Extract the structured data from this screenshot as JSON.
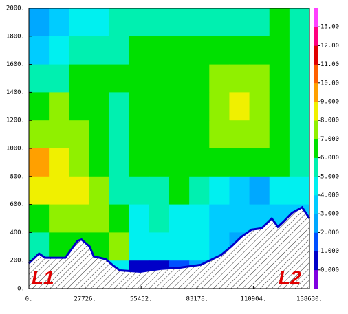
{
  "chart_data": {
    "type": "contour",
    "xlim": [
      0,
      138630
    ],
    "ylim": [
      0,
      2000
    ],
    "xticks": [
      {
        "value": 0,
        "label": "0."
      },
      {
        "value": 27726,
        "label": "27726."
      },
      {
        "value": 55452,
        "label": "55452."
      },
      {
        "value": 83178,
        "label": "83178."
      },
      {
        "value": 110904,
        "label": "110904."
      },
      {
        "value": 138630,
        "label": "138630."
      }
    ],
    "yticks": [
      {
        "value": 0,
        "label": "0."
      },
      {
        "value": 200,
        "label": "200."
      },
      {
        "value": 400,
        "label": "400."
      },
      {
        "value": 600,
        "label": "600."
      },
      {
        "value": 800,
        "label": "800."
      },
      {
        "value": 1000,
        "label": "1000."
      },
      {
        "value": 1200,
        "label": "1200."
      },
      {
        "value": 1400,
        "label": "1400."
      },
      {
        "value": 1600,
        "label": "1600."
      },
      {
        "value": 1800,
        "label": "1800."
      },
      {
        "value": 2000,
        "label": "2000."
      }
    ],
    "z": [
      [
        2.5,
        3.5,
        4.5,
        4.5,
        5.5,
        5.5,
        5.5,
        5.5,
        5.5,
        5.5,
        5.5,
        5.5,
        6.5,
        5.5
      ],
      [
        3.5,
        4.5,
        5.5,
        5.5,
        5.5,
        6.5,
        6.5,
        6.5,
        6.5,
        6.5,
        6.5,
        6.5,
        6.5,
        5.5
      ],
      [
        5.5,
        5.5,
        6.5,
        6.5,
        6.5,
        6.5,
        6.5,
        6.5,
        6.5,
        7.5,
        7.5,
        7.5,
        6.5,
        5.5
      ],
      [
        6.5,
        7.5,
        6.5,
        6.5,
        5.5,
        6.5,
        6.5,
        6.5,
        6.5,
        7.5,
        8.5,
        7.5,
        6.5,
        5.5
      ],
      [
        7.5,
        7.5,
        7.5,
        6.5,
        5.5,
        6.5,
        6.5,
        6.5,
        6.5,
        7.5,
        7.5,
        7.5,
        6.5,
        5.5
      ],
      [
        9.5,
        8.5,
        7.5,
        6.5,
        5.5,
        6.5,
        6.5,
        6.5,
        6.5,
        6.5,
        6.5,
        6.5,
        6.5,
        5.5
      ],
      [
        8.5,
        8.5,
        8.5,
        7.5,
        5.5,
        5.5,
        5.5,
        6.5,
        5.5,
        4.5,
        3.5,
        2.5,
        4.5,
        4.5
      ],
      [
        6.5,
        7.5,
        7.5,
        7.5,
        6.5,
        4.5,
        5.5,
        4.5,
        4.5,
        3.5,
        3.5,
        3.5,
        3.5,
        3.5
      ],
      [
        5.5,
        6.5,
        6.5,
        6.5,
        7.5,
        4.5,
        4.5,
        4.5,
        4.5,
        3.5,
        2.5,
        1.5,
        0.5,
        0.5
      ],
      [
        4.5,
        5.5,
        5.5,
        4.5,
        4.5,
        0.5,
        0.5,
        1.5,
        2.5,
        2.5,
        1.5,
        0.5,
        0.5,
        0.5
      ]
    ],
    "levels": [
      -1,
      0,
      1,
      2,
      3,
      4,
      5,
      6,
      7,
      8,
      9,
      10,
      11,
      12,
      13,
      14
    ],
    "colors": [
      "#8000e0",
      "#0000c8",
      "#0050ff",
      "#00a8ff",
      "#00ccff",
      "#00f0f0",
      "#00f0b0",
      "#00e000",
      "#90f000",
      "#f0f000",
      "#ffa000",
      "#ff6000",
      "#e00000",
      "#ff0080",
      "#ff40ff"
    ],
    "cbar_ticks": [
      {
        "value": 0,
        "label": "0.000"
      },
      {
        "value": 1,
        "label": "1.000"
      },
      {
        "value": 2,
        "label": "2.000"
      },
      {
        "value": 3,
        "label": "3.000"
      },
      {
        "value": 4,
        "label": "4.000"
      },
      {
        "value": 5,
        "label": "5.000"
      },
      {
        "value": 6,
        "label": "6.000"
      },
      {
        "value": 7,
        "label": "7.000"
      },
      {
        "value": 8,
        "label": "8.000"
      },
      {
        "value": 9,
        "label": "9.000"
      },
      {
        "value": 10,
        "label": "10.00"
      },
      {
        "value": 11,
        "label": "11.00"
      },
      {
        "value": 12,
        "label": "12.00"
      },
      {
        "value": 13,
        "label": "13.00"
      }
    ],
    "terrain": {
      "x": [
        0,
        5000,
        8000,
        18000,
        24000,
        26000,
        30000,
        32000,
        38000,
        42000,
        45000,
        55000,
        65000,
        75000,
        85000,
        95000,
        100000,
        105000,
        110000,
        115000,
        120000,
        123000,
        126000,
        130000,
        135000,
        138630
      ],
      "values": [
        180,
        250,
        220,
        220,
        340,
        350,
        300,
        230,
        210,
        160,
        130,
        120,
        140,
        150,
        170,
        240,
        300,
        370,
        420,
        430,
        500,
        440,
        480,
        540,
        580,
        500
      ]
    },
    "annotations": [
      {
        "text": "L1"
      },
      {
        "text": "L2"
      }
    ]
  }
}
